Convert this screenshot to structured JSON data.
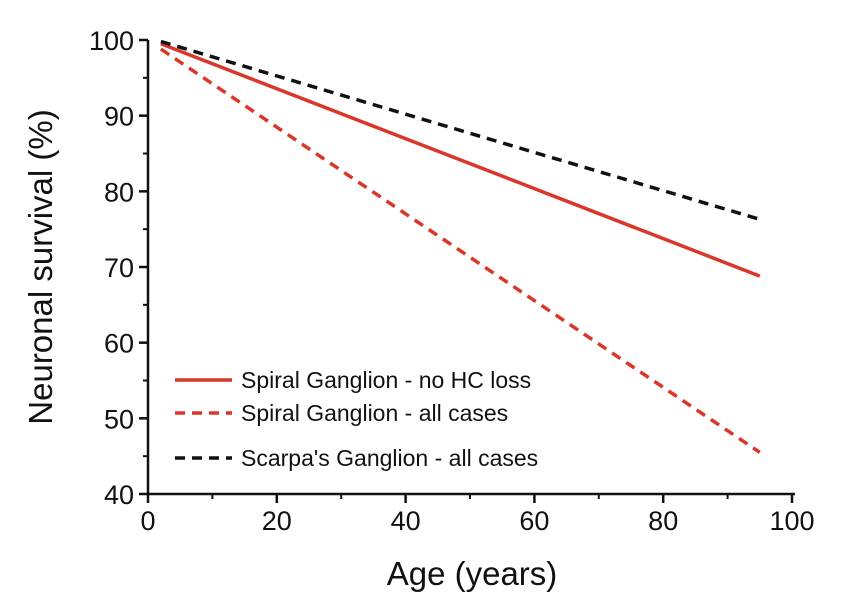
{
  "chart_data": {
    "type": "line",
    "xlabel": "Age (years)",
    "ylabel": "Neuronal survival (%)",
    "xlim": [
      0,
      100
    ],
    "ylim": [
      40,
      100
    ],
    "x_ticks": [
      0,
      20,
      40,
      60,
      80,
      100
    ],
    "y_ticks": [
      40,
      50,
      60,
      70,
      80,
      90,
      100
    ],
    "grid": false,
    "legend_position": "bottom-left",
    "series": [
      {
        "name": "Spiral Ganglion - no HC loss",
        "color": "#d9372a",
        "style": "solid",
        "x": [
          2,
          95
        ],
        "y": [
          99.5,
          68.8
        ]
      },
      {
        "name": "Spiral Ganglion - all cases",
        "color": "#d9372a",
        "style": "dashed",
        "x": [
          2,
          95
        ],
        "y": [
          98.8,
          45.5
        ]
      },
      {
        "name": "Scarpa's Ganglion - all cases",
        "color": "#111111",
        "style": "dashed",
        "x": [
          2,
          95
        ],
        "y": [
          99.8,
          76.3
        ]
      }
    ]
  }
}
